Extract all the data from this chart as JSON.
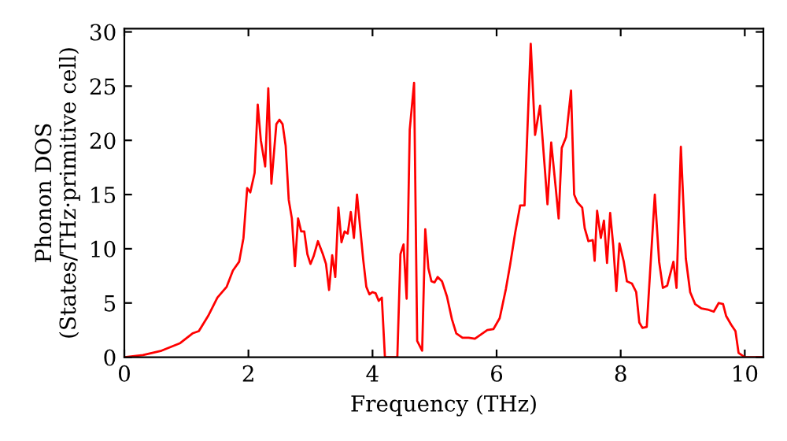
{
  "chart_data": {
    "type": "line",
    "xlabel": "Frequency (THz)",
    "ylabel": "Phonon DOS\n(States/THz·primitive cell)",
    "xlim": [
      0,
      10.3
    ],
    "ylim": [
      0,
      30.3
    ],
    "xticks": [
      0,
      2,
      4,
      6,
      8,
      10
    ],
    "yticks": [
      0,
      5,
      10,
      15,
      20,
      25,
      30
    ],
    "grid": false,
    "legend": false,
    "marker": "none",
    "line_style": "solid",
    "series": [
      {
        "color": "#ff0000",
        "x": [
          0,
          0.3,
          0.6,
          0.9,
          1.1,
          1.2,
          1.35,
          1.5,
          1.65,
          1.75,
          1.85,
          1.92,
          1.98,
          2.03,
          2.1,
          2.15,
          2.2,
          2.27,
          2.32,
          2.37,
          2.45,
          2.5,
          2.55,
          2.6,
          2.65,
          2.7,
          2.75,
          2.8,
          2.85,
          2.9,
          2.95,
          3.0,
          3.05,
          3.12,
          3.2,
          3.25,
          3.3,
          3.35,
          3.4,
          3.45,
          3.5,
          3.55,
          3.6,
          3.65,
          3.7,
          3.75,
          3.8,
          3.85,
          3.9,
          3.95,
          4.0,
          4.05,
          4.1,
          4.15,
          4.2,
          4.4,
          4.45,
          4.5,
          4.55,
          4.6,
          4.67,
          4.72,
          4.8,
          4.85,
          4.9,
          4.95,
          5.0,
          5.05,
          5.12,
          5.2,
          5.28,
          5.35,
          5.45,
          5.55,
          5.65,
          5.75,
          5.85,
          5.95,
          6.05,
          6.15,
          6.22,
          6.3,
          6.38,
          6.45,
          6.55,
          6.62,
          6.7,
          6.78,
          6.82,
          6.88,
          6.95,
          7.0,
          7.05,
          7.12,
          7.2,
          7.25,
          7.3,
          7.38,
          7.42,
          7.48,
          7.55,
          7.58,
          7.62,
          7.68,
          7.73,
          7.78,
          7.83,
          7.88,
          7.93,
          7.98,
          8.05,
          8.1,
          8.18,
          8.25,
          8.3,
          8.35,
          8.42,
          8.55,
          8.62,
          8.68,
          8.75,
          8.85,
          8.9,
          8.97,
          9.05,
          9.12,
          9.2,
          9.3,
          9.4,
          9.5,
          9.58,
          9.65,
          9.7,
          9.78,
          9.85,
          9.9,
          10.0,
          10.3
        ],
        "values": [
          0,
          0.2,
          0.6,
          1.3,
          2.2,
          2.4,
          3.8,
          5.5,
          6.5,
          8,
          8.8,
          11,
          15.6,
          15.2,
          17,
          23.3,
          20,
          17.6,
          24.8,
          16,
          21.5,
          21.9,
          21.5,
          19.5,
          14.5,
          12.8,
          8.4,
          12.8,
          11.6,
          11.6,
          9.5,
          8.6,
          9.3,
          10.7,
          9.5,
          8.6,
          6.2,
          9.4,
          7.4,
          13.8,
          10.6,
          11.6,
          11.4,
          13.4,
          11,
          15,
          12,
          9,
          6.5,
          5.8,
          6,
          5.9,
          5.2,
          5.5,
          0,
          0,
          9.5,
          10.4,
          5.4,
          21,
          25.3,
          1.5,
          0.6,
          11.8,
          8.2,
          7,
          6.9,
          7.4,
          7,
          5.6,
          3.5,
          2.2,
          1.8,
          1.8,
          1.7,
          2.1,
          2.5,
          2.6,
          3.6,
          6.3,
          8.6,
          11.5,
          14,
          14,
          28.9,
          20.5,
          23.2,
          17.2,
          14.1,
          19.8,
          15.8,
          12.8,
          19.3,
          20.3,
          24.6,
          15,
          14.3,
          13.8,
          11.9,
          10.7,
          10.8,
          8.9,
          13.5,
          11,
          12.6,
          8.7,
          13.3,
          10.3,
          6.1,
          10.5,
          8.8,
          7,
          6.8,
          6,
          3.2,
          2.7,
          2.8,
          15,
          8.8,
          6.4,
          6.6,
          8.8,
          6.4,
          19.4,
          9.1,
          6,
          4.9,
          4.5,
          4.4,
          4.2,
          5,
          4.9,
          3.8,
          3,
          2.4,
          0.4,
          0,
          0
        ]
      }
    ]
  }
}
